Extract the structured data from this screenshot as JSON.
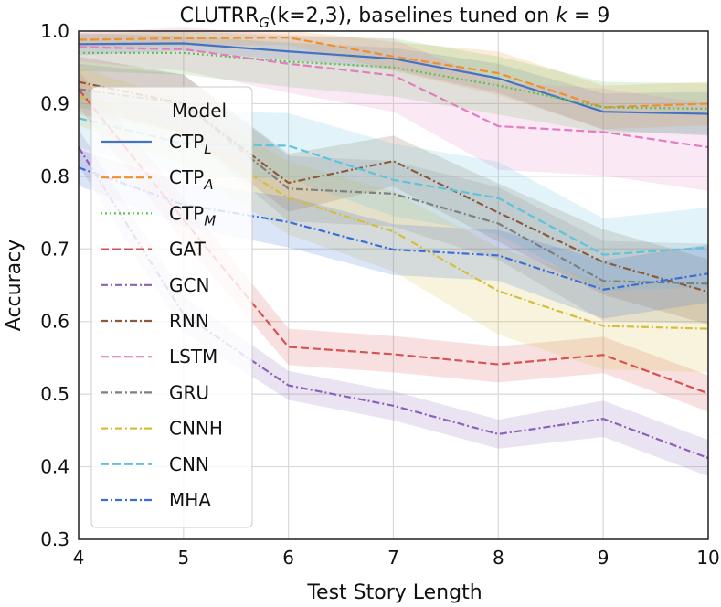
{
  "chart_data": {
    "type": "line",
    "title_main": "CLUTRR",
    "title_sub": "G",
    "title_rest": "(k=2,3), baselines tuned on ",
    "title_var": "k",
    "title_eq": " = 9",
    "xlabel": "Test Story Length",
    "ylabel": "Accuracy",
    "xlim": [
      4,
      10
    ],
    "ylim": [
      0.3,
      1.0
    ],
    "x": [
      4,
      5,
      6,
      7,
      8,
      9,
      10
    ],
    "xticks": [
      "4",
      "5",
      "6",
      "7",
      "8",
      "9",
      "10"
    ],
    "yticks": [
      "0.3",
      "0.4",
      "0.5",
      "0.6",
      "0.7",
      "0.8",
      "0.9",
      "1.0"
    ],
    "ytick_values": [
      0.3,
      0.4,
      0.5,
      0.6,
      0.7,
      0.8,
      0.9,
      1.0
    ],
    "grid": true,
    "legend_title": "Model",
    "legend_position": "left",
    "series": [
      {
        "name": "CTP",
        "sub": "L",
        "color": "#4472c4",
        "dash": "solid",
        "values": [
          0.982,
          0.983,
          0.972,
          0.962,
          0.935,
          0.889,
          0.886
        ],
        "band": [
          0.015,
          0.01,
          0.012,
          0.015,
          0.02,
          0.025,
          0.03
        ]
      },
      {
        "name": "CTP",
        "sub": "A",
        "color": "#f28e2b",
        "dash": "dashed",
        "values": [
          0.988,
          0.99,
          0.991,
          0.965,
          0.942,
          0.895,
          0.9
        ],
        "band": [
          0.01,
          0.01,
          0.01,
          0.02,
          0.03,
          0.03,
          0.03
        ]
      },
      {
        "name": "CTP",
        "sub": "M",
        "color": "#59c44d",
        "dash": "dotted",
        "values": [
          0.97,
          0.97,
          0.958,
          0.95,
          0.925,
          0.895,
          0.893
        ],
        "band": [
          0.025,
          0.03,
          0.035,
          0.04,
          0.04,
          0.035,
          0.035
        ]
      },
      {
        "name": "GAT",
        "sub": "",
        "color": "#d65253",
        "dash": "dashed",
        "values": [
          0.92,
          0.74,
          0.565,
          0.555,
          0.541,
          0.554,
          0.501
        ],
        "band": [
          0.025,
          0.03,
          0.025,
          0.025,
          0.025,
          0.025,
          0.025
        ]
      },
      {
        "name": "GCN",
        "sub": "",
        "color": "#8c62b8",
        "dash": "dashdot",
        "values": [
          0.84,
          0.61,
          0.512,
          0.484,
          0.445,
          0.466,
          0.412
        ],
        "band": [
          0.025,
          0.025,
          0.02,
          0.02,
          0.02,
          0.025,
          0.025
        ]
      },
      {
        "name": "RNN",
        "sub": "",
        "color": "#8b5a3c",
        "dash": "dashdot",
        "values": [
          0.93,
          0.9,
          0.791,
          0.821,
          0.75,
          0.682,
          0.641
        ],
        "band": [
          0.035,
          0.04,
          0.04,
          0.035,
          0.04,
          0.045,
          0.045
        ]
      },
      {
        "name": "LSTM",
        "sub": "",
        "color": "#e37dc2",
        "dash": "dashed",
        "values": [
          0.978,
          0.975,
          0.955,
          0.939,
          0.869,
          0.861,
          0.84
        ],
        "band": [
          0.02,
          0.03,
          0.04,
          0.05,
          0.06,
          0.06,
          0.06
        ]
      },
      {
        "name": "GRU",
        "sub": "",
        "color": "#7f7f7f",
        "dash": "dashdot",
        "values": [
          0.92,
          0.9,
          0.783,
          0.776,
          0.735,
          0.656,
          0.652
        ],
        "band": [
          0.035,
          0.04,
          0.045,
          0.045,
          0.05,
          0.055,
          0.055
        ]
      },
      {
        "name": "CNNH",
        "sub": "",
        "color": "#d7bd3e",
        "dash": "dashdot",
        "values": [
          0.91,
          0.86,
          0.77,
          0.724,
          0.642,
          0.594,
          0.59
        ],
        "band": [
          0.04,
          0.045,
          0.05,
          0.055,
          0.06,
          0.06,
          0.06
        ]
      },
      {
        "name": "CNN",
        "sub": "",
        "color": "#5fc3db",
        "dash": "dashed",
        "values": [
          0.88,
          0.845,
          0.842,
          0.795,
          0.77,
          0.692,
          0.702
        ],
        "band": [
          0.04,
          0.045,
          0.045,
          0.05,
          0.05,
          0.05,
          0.055
        ]
      },
      {
        "name": "MHA",
        "sub": "",
        "color": "#3a6fd9",
        "dash": "dashdot",
        "values": [
          0.812,
          0.761,
          0.737,
          0.699,
          0.691,
          0.644,
          0.666
        ],
        "band": [
          0.025,
          0.03,
          0.035,
          0.035,
          0.035,
          0.04,
          0.04
        ]
      }
    ]
  }
}
